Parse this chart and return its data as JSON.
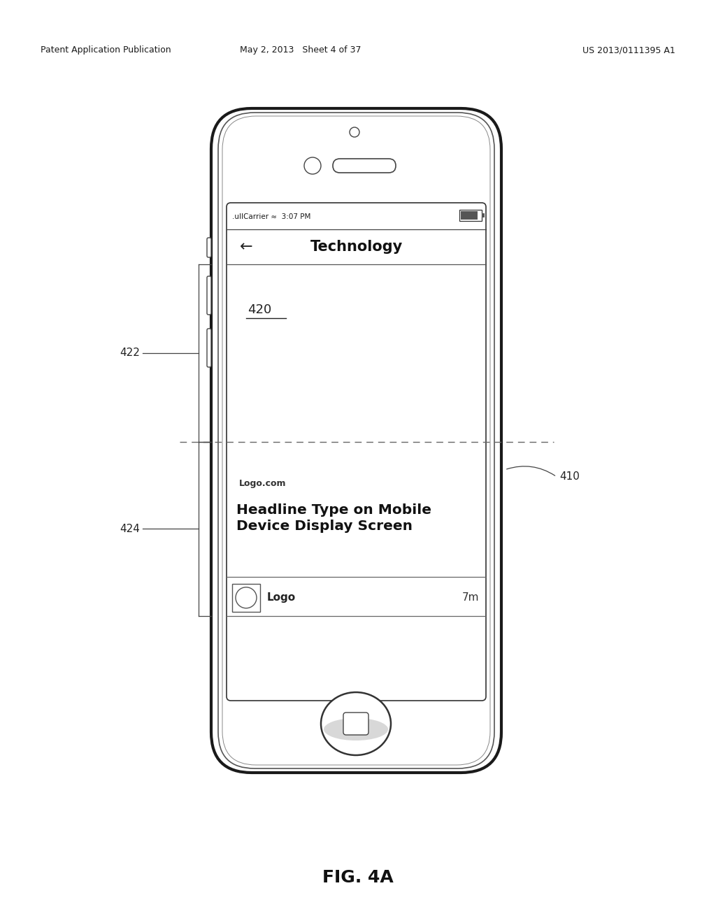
{
  "bg_color": "#ffffff",
  "header_left": "Patent Application Publication",
  "header_mid": "May 2, 2013   Sheet 4 of 37",
  "header_right": "US 2013/0111395 A1",
  "fig_label": "FIG. 4A",
  "label_410": "410",
  "label_422": "422",
  "label_424": "424",
  "label_420": "420"
}
